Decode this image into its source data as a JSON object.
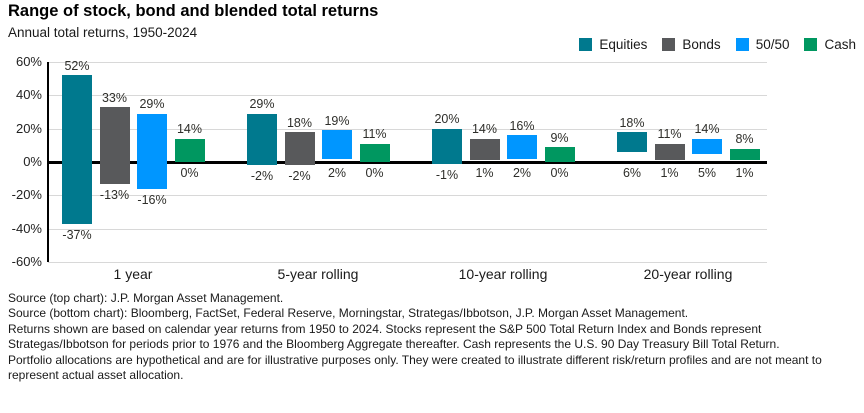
{
  "header": {
    "title": "Range of stock, bond and blended total returns",
    "subtitle": "Annual total returns, 1950-2024"
  },
  "legend": {
    "items": [
      {
        "label": "Equities",
        "color": "#00798e"
      },
      {
        "label": "Bonds",
        "color": "#58595b"
      },
      {
        "label": "50/50",
        "color": "#0096ff"
      },
      {
        "label": "Cash",
        "color": "#009760"
      }
    ]
  },
  "chart_data": {
    "type": "bar",
    "subtype": "floating-range-columns",
    "title": "Range of stock, bond and blended total returns",
    "subtitle": "Annual total returns, 1950-2024",
    "categories": [
      "1 year",
      "5-year rolling",
      "10-year rolling",
      "20-year rolling"
    ],
    "series": [
      {
        "name": "Equities",
        "color": "#00798e",
        "max": [
          52,
          29,
          20,
          18
        ],
        "min": [
          -37,
          -2,
          -1,
          6
        ]
      },
      {
        "name": "Bonds",
        "color": "#58595b",
        "max": [
          33,
          18,
          14,
          11
        ],
        "min": [
          -13,
          -2,
          1,
          1
        ]
      },
      {
        "name": "50/50",
        "color": "#0096ff",
        "max": [
          29,
          19,
          16,
          14
        ],
        "min": [
          -16,
          2,
          2,
          5
        ]
      },
      {
        "name": "Cash",
        "color": "#009760",
        "max": [
          14,
          11,
          9,
          8
        ],
        "min": [
          0,
          0,
          0,
          1
        ]
      }
    ],
    "value_suffix": "%",
    "ylim": [
      -60,
      60
    ],
    "yticks": [
      60,
      40,
      20,
      0,
      -20,
      -40,
      -60
    ],
    "grid": true,
    "legend_position": "top-right",
    "zero_line_color": "#000000",
    "gridline_color": "#d8d8d8"
  },
  "footnotes": [
    "Source (top chart): J.P. Morgan Asset Management.",
    "Source (bottom chart): Bloomberg, FactSet, Federal Reserve, Morningstar, Strategas/Ibbotson, J.P. Morgan Asset Management.",
    "Returns shown are based on calendar year returns from 1950 to 2024. Stocks represent the S&P 500 Total Return Index and Bonds represent Strategas/Ibbotson for periods prior to 1976 and the Bloomberg Aggregate thereafter. Cash represents the U.S. 90 Day Treasury Bill Total Return.",
    "Portfolio allocations are hypothetical and are for illustrative purposes only. They were created to illustrate different risk/return profiles and are not meant to represent actual asset allocation."
  ]
}
